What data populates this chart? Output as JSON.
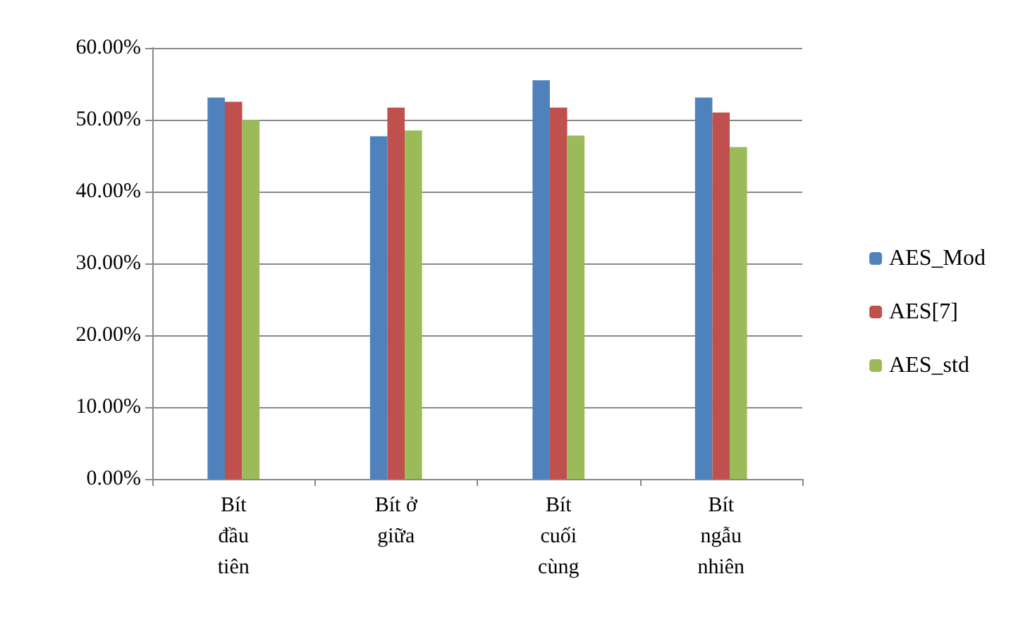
{
  "chart_data": {
    "type": "bar",
    "categories": [
      "Bít\nđầu\ntiên",
      "Bít ở\ngiữa",
      "Bít\ncuối\ncùng",
      "Bít\nngẫu\nnhiên"
    ],
    "series": [
      {
        "name": "AES_Mod",
        "color": "#4f81bd",
        "values": [
          53.1,
          47.7,
          55.5,
          53.1
        ]
      },
      {
        "name": "AES[7]",
        "color": "#c0504d",
        "values": [
          52.5,
          51.7,
          51.7,
          51.0
        ]
      },
      {
        "name": "AES_std",
        "color": "#9bbb59",
        "values": [
          50.0,
          48.5,
          47.8,
          46.2
        ]
      }
    ],
    "ylim": [
      0,
      60
    ],
    "yticks": [
      {
        "value": 0,
        "label": "0.00%"
      },
      {
        "value": 10,
        "label": "10.00%"
      },
      {
        "value": 20,
        "label": "20.00%"
      },
      {
        "value": 30,
        "label": "30.00%"
      },
      {
        "value": 40,
        "label": "40.00%"
      },
      {
        "value": 50,
        "label": "50.00%"
      },
      {
        "value": 60,
        "label": "60.00%"
      }
    ],
    "grid": "y",
    "legend": "right"
  }
}
